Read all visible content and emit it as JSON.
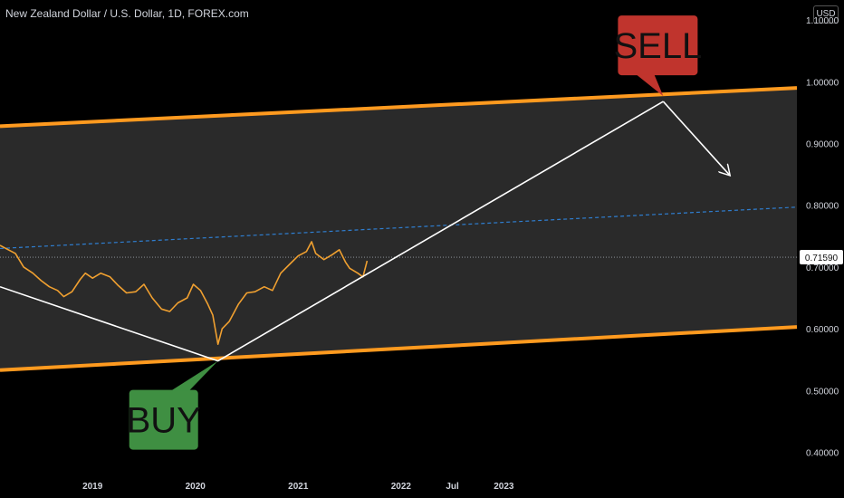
{
  "header": {
    "title": "New Zealand Dollar / U.S. Dollar, 1D, FOREX.com",
    "currency": "USD"
  },
  "chart_data": {
    "type": "line",
    "symbol": "NZDUSD",
    "ylim": [
      0.37,
      1.125
    ],
    "xlim": [
      2018.1,
      2025.85
    ],
    "yticks": [
      {
        "value": 1.1,
        "label": "1.10000"
      },
      {
        "value": 1.0,
        "label": "1.00000"
      },
      {
        "value": 0.9,
        "label": "0.90000"
      },
      {
        "value": 0.8,
        "label": "0.80000"
      },
      {
        "value": 0.7,
        "label": "0.70000"
      },
      {
        "value": 0.6,
        "label": "0.60000"
      },
      {
        "value": 0.5,
        "label": "0.50000"
      },
      {
        "value": 0.4,
        "label": "0.40000"
      }
    ],
    "xticks": [
      {
        "value": 2019.0,
        "label": "2019"
      },
      {
        "value": 2020.0,
        "label": "2020"
      },
      {
        "value": 2021.0,
        "label": "2021"
      },
      {
        "value": 2022.0,
        "label": "2022"
      },
      {
        "value": 2022.5,
        "label": "Jul"
      },
      {
        "value": 2023.0,
        "label": "2023"
      }
    ],
    "current_price": {
      "value": 0.7159,
      "label": "0.71590"
    },
    "price_series": [
      [
        2018.1,
        0.735
      ],
      [
        2018.18,
        0.728
      ],
      [
        2018.25,
        0.722
      ],
      [
        2018.33,
        0.7
      ],
      [
        2018.42,
        0.69
      ],
      [
        2018.5,
        0.678
      ],
      [
        2018.58,
        0.668
      ],
      [
        2018.66,
        0.662
      ],
      [
        2018.72,
        0.652
      ],
      [
        2018.8,
        0.66
      ],
      [
        2018.88,
        0.68
      ],
      [
        2018.93,
        0.69
      ],
      [
        2019.0,
        0.682
      ],
      [
        2019.08,
        0.69
      ],
      [
        2019.17,
        0.684
      ],
      [
        2019.25,
        0.67
      ],
      [
        2019.33,
        0.658
      ],
      [
        2019.42,
        0.66
      ],
      [
        2019.5,
        0.672
      ],
      [
        2019.58,
        0.65
      ],
      [
        2019.67,
        0.632
      ],
      [
        2019.75,
        0.628
      ],
      [
        2019.83,
        0.642
      ],
      [
        2019.92,
        0.65
      ],
      [
        2019.98,
        0.672
      ],
      [
        2020.05,
        0.662
      ],
      [
        2020.12,
        0.64
      ],
      [
        2020.17,
        0.622
      ],
      [
        2020.22,
        0.575
      ],
      [
        2020.26,
        0.6
      ],
      [
        2020.33,
        0.612
      ],
      [
        2020.42,
        0.64
      ],
      [
        2020.5,
        0.658
      ],
      [
        2020.58,
        0.66
      ],
      [
        2020.67,
        0.668
      ],
      [
        2020.75,
        0.662
      ],
      [
        2020.83,
        0.69
      ],
      [
        2020.92,
        0.705
      ],
      [
        2021.0,
        0.718
      ],
      [
        2021.08,
        0.725
      ],
      [
        2021.13,
        0.741
      ],
      [
        2021.17,
        0.722
      ],
      [
        2021.25,
        0.712
      ],
      [
        2021.33,
        0.72
      ],
      [
        2021.4,
        0.728
      ],
      [
        2021.46,
        0.708
      ],
      [
        2021.5,
        0.698
      ],
      [
        2021.58,
        0.69
      ],
      [
        2021.63,
        0.684
      ],
      [
        2021.67,
        0.71
      ]
    ],
    "channel_upper": [
      [
        2018.1,
        0.928
      ],
      [
        2025.85,
        0.99
      ]
    ],
    "channel_lower": [
      [
        2018.1,
        0.533
      ],
      [
        2025.85,
        0.603
      ]
    ],
    "channel_mid": [
      [
        2018.1,
        0.73
      ],
      [
        2025.85,
        0.797
      ]
    ],
    "projection_path": [
      [
        2018.1,
        0.668
      ],
      [
        2020.22,
        0.548
      ],
      [
        2024.55,
        0.968
      ],
      [
        2025.2,
        0.848
      ]
    ],
    "annotations": [
      {
        "label": "BUY",
        "x": 2020.22,
        "y": 0.548,
        "color": "#3f8f42"
      },
      {
        "label": "SELL",
        "x": 2024.55,
        "y": 0.968,
        "color": "#c0342d"
      }
    ],
    "colors": {
      "background": "#000000",
      "channel_fill": "#2a2a2a",
      "channel_border": "#ff9a1f",
      "mid_line": "#2f7ed0",
      "price_line": "#f0a030",
      "projection": "#ffffff",
      "axis_text": "#d1d4dc"
    },
    "grid": false,
    "legend": "none"
  }
}
